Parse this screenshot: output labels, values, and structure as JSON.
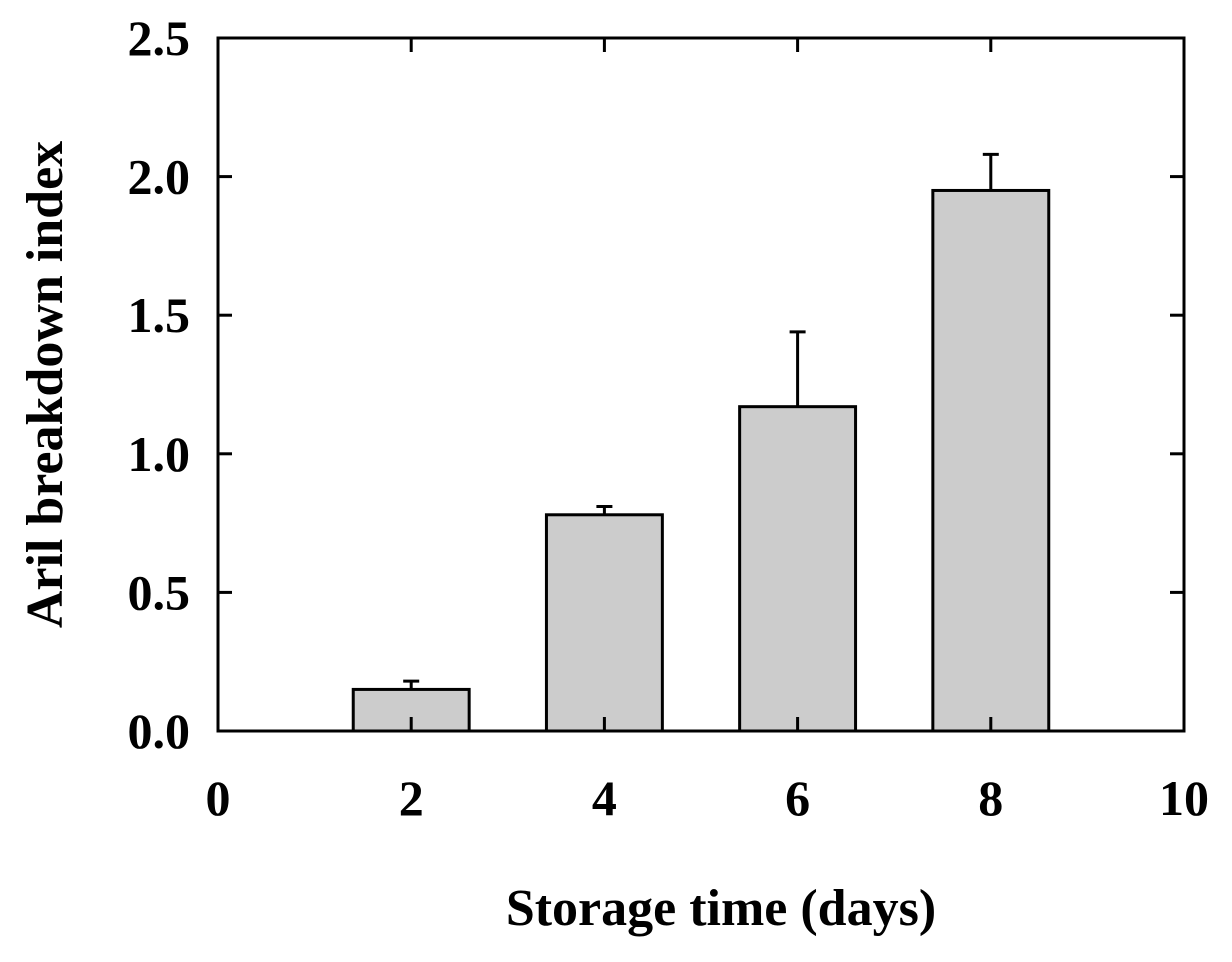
{
  "chart_data": {
    "type": "bar",
    "xlabel": "Storage time (days)",
    "ylabel": "Aril breakdown index",
    "xlim": [
      0,
      10
    ],
    "ylim": [
      0,
      2.5
    ],
    "x_ticks": [
      "0",
      "2",
      "4",
      "6",
      "8",
      "10"
    ],
    "y_ticks": [
      "0.0",
      "0.5",
      "1.0",
      "1.5",
      "2.0",
      "2.5"
    ],
    "x": [
      2,
      4,
      6,
      8
    ],
    "values": [
      0.15,
      0.78,
      1.17,
      1.95
    ],
    "errors": [
      0.03,
      0.03,
      0.27,
      0.13
    ],
    "bar_width": 1.2,
    "bar_color": "#cccccc",
    "grid": false
  }
}
